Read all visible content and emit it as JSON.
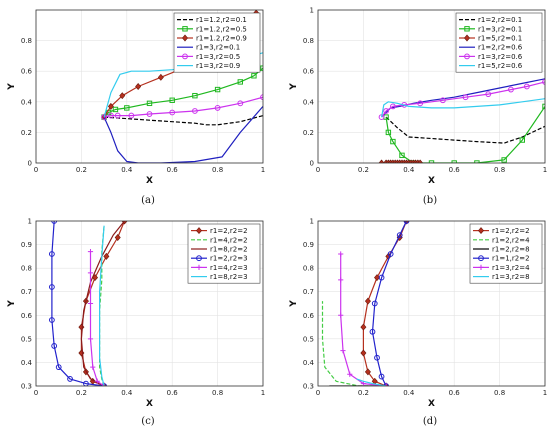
{
  "chart_data": [
    {
      "type": "line",
      "caption": "(a)",
      "xlabel": "X",
      "ylabel": "Y",
      "xlim": [
        0,
        1
      ],
      "ylim": [
        0,
        1
      ],
      "xticks": [
        "0",
        "0.2",
        "0.4",
        "0.6",
        "0.8",
        "1"
      ],
      "yticks": [
        "0",
        "0.2",
        "0.4",
        "0.6",
        "0.8"
      ],
      "legend_position": "top-right",
      "series": [
        {
          "name": "r1=1.2,r2=0.1",
          "color": "#000000",
          "dash": "4,2",
          "marker": "none",
          "x": [
            0.3,
            0.4,
            0.5,
            0.6,
            0.7,
            0.75,
            0.8,
            0.9,
            1.0
          ],
          "y": [
            0.3,
            0.29,
            0.28,
            0.27,
            0.26,
            0.25,
            0.25,
            0.27,
            0.31
          ]
        },
        {
          "name": "r1=1.2,r2=0.5",
          "color": "#1fb81f",
          "dash": "",
          "marker": "square",
          "x": [
            0.3,
            0.32,
            0.35,
            0.4,
            0.5,
            0.6,
            0.7,
            0.8,
            0.9,
            0.96,
            1.0
          ],
          "y": [
            0.3,
            0.33,
            0.35,
            0.36,
            0.39,
            0.41,
            0.44,
            0.48,
            0.53,
            0.57,
            0.62
          ]
        },
        {
          "name": "r1=1.2,r2=0.9",
          "color": "#b5301e",
          "dash": "",
          "marker": "diamond",
          "x": [
            0.3,
            0.33,
            0.38,
            0.45,
            0.55,
            0.65,
            0.75,
            0.85,
            0.92,
            0.97
          ],
          "y": [
            0.3,
            0.37,
            0.44,
            0.5,
            0.56,
            0.62,
            0.7,
            0.78,
            0.87,
            0.98
          ]
        },
        {
          "name": "r1=3,r2=0.1",
          "color": "#1f1fbf",
          "dash": "",
          "marker": "none",
          "x": [
            0.3,
            0.33,
            0.36,
            0.4,
            0.45,
            0.55,
            0.7,
            0.82,
            0.9,
            1.0
          ],
          "y": [
            0.3,
            0.2,
            0.08,
            0.01,
            0.0,
            0.0,
            0.01,
            0.04,
            0.2,
            0.37
          ]
        },
        {
          "name": "r1=3,r2=0.5",
          "color": "#cc33ee",
          "dash": "",
          "marker": "circle",
          "x": [
            0.3,
            0.33,
            0.36,
            0.42,
            0.5,
            0.6,
            0.7,
            0.8,
            0.9,
            1.0
          ],
          "y": [
            0.3,
            0.31,
            0.31,
            0.31,
            0.32,
            0.33,
            0.34,
            0.36,
            0.39,
            0.43
          ]
        },
        {
          "name": "r1=3,r2=0.9",
          "color": "#33ccee",
          "dash": "",
          "marker": "none",
          "x": [
            0.3,
            0.33,
            0.37,
            0.42,
            0.5,
            0.6,
            0.7,
            0.8,
            0.9,
            1.0
          ],
          "y": [
            0.3,
            0.46,
            0.58,
            0.6,
            0.6,
            0.61,
            0.63,
            0.65,
            0.68,
            0.72
          ]
        }
      ]
    },
    {
      "type": "line",
      "caption": "(b)",
      "xlabel": "X",
      "ylabel": "Y",
      "xlim": [
        0,
        1
      ],
      "ylim": [
        0,
        1
      ],
      "xticks": [
        "0",
        "0.2",
        "0.4",
        "0.6",
        "0.8",
        "1"
      ],
      "yticks": [
        "0",
        "0.2",
        "0.4",
        "0.6",
        "0.8",
        "1"
      ],
      "legend_position": "top-right",
      "series": [
        {
          "name": "r1=2,r2=0.1",
          "color": "#000000",
          "dash": "4,2",
          "marker": "none",
          "x": [
            0.3,
            0.35,
            0.4,
            0.5,
            0.6,
            0.7,
            0.82,
            0.9,
            1.0
          ],
          "y": [
            0.3,
            0.23,
            0.17,
            0.16,
            0.15,
            0.14,
            0.13,
            0.17,
            0.24
          ]
        },
        {
          "name": "r1=3,r2=0.1",
          "color": "#1fb81f",
          "dash": "",
          "marker": "square",
          "x": [
            0.3,
            0.31,
            0.33,
            0.37,
            0.42,
            0.5,
            0.6,
            0.7,
            0.82,
            0.9,
            1.0
          ],
          "y": [
            0.3,
            0.2,
            0.14,
            0.05,
            0.0,
            0.0,
            0.0,
            0.0,
            0.02,
            0.15,
            0.37
          ]
        },
        {
          "name": "r1=5,r2=0.1",
          "color": "#b5301e",
          "dash": "",
          "marker": "diamond",
          "x": [
            0.28,
            0.3,
            0.31,
            0.32,
            0.33,
            0.34,
            0.35,
            0.36,
            0.37,
            0.38,
            0.39,
            0.4,
            0.41,
            0.42,
            0.43,
            0.44,
            0.45
          ],
          "y": [
            0.0,
            0.0,
            0.0,
            0.0,
            0.0,
            0.0,
            0.0,
            0.0,
            0.0,
            0.0,
            0.0,
            0.0,
            0.0,
            0.0,
            0.0,
            0.0,
            0.0
          ]
        },
        {
          "name": "r1=2,r2=0.6",
          "color": "#1f1fbf",
          "dash": "",
          "marker": "none",
          "x": [
            0.28,
            0.3,
            0.32,
            0.36,
            0.42,
            0.5,
            0.6,
            0.7,
            0.8,
            0.9,
            1.0
          ],
          "y": [
            0.3,
            0.33,
            0.36,
            0.37,
            0.39,
            0.41,
            0.43,
            0.46,
            0.49,
            0.52,
            0.55
          ]
        },
        {
          "name": "r1=3,r2=0.6",
          "color": "#cc33ee",
          "dash": "",
          "marker": "circle",
          "x": [
            0.28,
            0.3,
            0.33,
            0.38,
            0.45,
            0.55,
            0.65,
            0.75,
            0.85,
            0.92,
            1.0
          ],
          "y": [
            0.3,
            0.34,
            0.37,
            0.38,
            0.39,
            0.41,
            0.43,
            0.45,
            0.48,
            0.5,
            0.53
          ]
        },
        {
          "name": "r1=5,r2=0.6",
          "color": "#33ccee",
          "dash": "",
          "marker": "none",
          "x": [
            0.28,
            0.29,
            0.31,
            0.35,
            0.4,
            0.5,
            0.6,
            0.7,
            0.8,
            0.9,
            1.0
          ],
          "y": [
            0.3,
            0.38,
            0.4,
            0.39,
            0.37,
            0.36,
            0.36,
            0.37,
            0.38,
            0.4,
            0.42
          ]
        }
      ]
    },
    {
      "type": "line",
      "caption": "(c)",
      "xlabel": "X",
      "ylabel": "Y",
      "xlim": [
        0,
        1
      ],
      "ylim": [
        0.3,
        1
      ],
      "xticks": [
        "0",
        "0.2",
        "0.4",
        "0.6",
        "0.8",
        "1"
      ],
      "yticks": [
        "0.3",
        "0.4",
        "0.5",
        "0.6",
        "0.7",
        "0.8",
        "0.9",
        "1"
      ],
      "legend_position": "top-right",
      "series": [
        {
          "name": "r1=2,r2=2",
          "color": "#b5301e",
          "dash": "",
          "marker": "diamond",
          "x": [
            0.3,
            0.25,
            0.22,
            0.2,
            0.2,
            0.22,
            0.26,
            0.31,
            0.36,
            0.39
          ],
          "y": [
            0.3,
            0.32,
            0.36,
            0.44,
            0.55,
            0.66,
            0.76,
            0.85,
            0.93,
            1.0
          ]
        },
        {
          "name": "r1=4,r2=2",
          "color": "#44cc44",
          "dash": "4,2",
          "marker": "none",
          "x": [
            0.3,
            0.29,
            0.28,
            0.28,
            0.28,
            0.29,
            0.29,
            0.3
          ],
          "y": [
            0.3,
            0.33,
            0.38,
            0.5,
            0.62,
            0.75,
            0.87,
            0.98
          ]
        },
        {
          "name": "r1=8,r2=2",
          "color": "#8b1a1a",
          "dash": "",
          "marker": "none",
          "x": [
            0.3,
            0.24,
            0.21,
            0.2,
            0.21,
            0.24,
            0.29,
            0.34,
            0.39
          ],
          "y": [
            0.3,
            0.33,
            0.38,
            0.5,
            0.62,
            0.74,
            0.85,
            0.94,
            1.0
          ]
        },
        {
          "name": "r1=2,r2=3",
          "color": "#2222cc",
          "dash": "",
          "marker": "circle",
          "x": [
            0.3,
            0.22,
            0.15,
            0.1,
            0.08,
            0.07,
            0.07,
            0.07,
            0.08
          ],
          "y": [
            0.3,
            0.31,
            0.33,
            0.38,
            0.47,
            0.58,
            0.72,
            0.86,
            1.0
          ]
        },
        {
          "name": "r1=4,r2=3",
          "color": "#cc33ee",
          "dash": "",
          "marker": "plus",
          "x": [
            0.3,
            0.27,
            0.25,
            0.24,
            0.24,
            0.24,
            0.24
          ],
          "y": [
            0.3,
            0.32,
            0.38,
            0.5,
            0.65,
            0.78,
            0.87
          ]
        },
        {
          "name": "r1=8,r2=3",
          "color": "#33ccee",
          "dash": "",
          "marker": "none",
          "x": [
            0.3,
            0.29,
            0.28,
            0.28,
            0.28,
            0.29,
            0.3
          ],
          "y": [
            0.3,
            0.34,
            0.42,
            0.55,
            0.7,
            0.85,
            0.98
          ]
        }
      ]
    },
    {
      "type": "line",
      "caption": "(d)",
      "xlabel": "X",
      "ylabel": "Y",
      "xlim": [
        0,
        1
      ],
      "ylim": [
        0.3,
        1
      ],
      "xticks": [
        "0",
        "0.2",
        "0.4",
        "0.6",
        "0.8",
        "1"
      ],
      "yticks": [
        "0.3",
        "0.4",
        "0.5",
        "0.6",
        "0.7",
        "0.8",
        "0.9",
        "1"
      ],
      "legend_position": "top-right",
      "series": [
        {
          "name": "r1=2,r2=2",
          "color": "#b5301e",
          "dash": "",
          "marker": "diamond",
          "x": [
            0.3,
            0.25,
            0.22,
            0.2,
            0.2,
            0.22,
            0.26,
            0.31,
            0.36,
            0.39
          ],
          "y": [
            0.3,
            0.32,
            0.36,
            0.44,
            0.55,
            0.66,
            0.76,
            0.85,
            0.93,
            1.0
          ]
        },
        {
          "name": "r1=2,r2=4",
          "color": "#44cc44",
          "dash": "4,2",
          "marker": "none",
          "x": [
            0.3,
            0.18,
            0.08,
            0.03,
            0.02,
            0.02
          ],
          "y": [
            0.3,
            0.3,
            0.32,
            0.38,
            0.5,
            0.66
          ]
        },
        {
          "name": "r1=2,r2=8",
          "color": "#000000",
          "dash": "",
          "marker": "none",
          "x": [
            0.3,
            0.2,
            0.12,
            0.05
          ],
          "y": [
            0.3,
            0.3,
            0.3,
            0.3
          ]
        },
        {
          "name": "r1=1,r2=2",
          "color": "#2222cc",
          "dash": "",
          "marker": "circle",
          "x": [
            0.3,
            0.28,
            0.26,
            0.24,
            0.25,
            0.28,
            0.32,
            0.36,
            0.39
          ],
          "y": [
            0.3,
            0.34,
            0.42,
            0.53,
            0.65,
            0.76,
            0.86,
            0.94,
            1.0
          ]
        },
        {
          "name": "r1=3,r2=4",
          "color": "#cc33ee",
          "dash": "",
          "marker": "plus",
          "x": [
            0.3,
            0.2,
            0.14,
            0.11,
            0.1,
            0.1,
            0.1
          ],
          "y": [
            0.3,
            0.31,
            0.35,
            0.45,
            0.6,
            0.75,
            0.86
          ]
        },
        {
          "name": "r1=3,r2=8",
          "color": "#33ccee",
          "dash": "",
          "marker": "none",
          "x": [
            0.3,
            0.24,
            0.2,
            0.17
          ],
          "y": [
            0.3,
            0.31,
            0.32,
            0.33
          ]
        }
      ]
    }
  ]
}
